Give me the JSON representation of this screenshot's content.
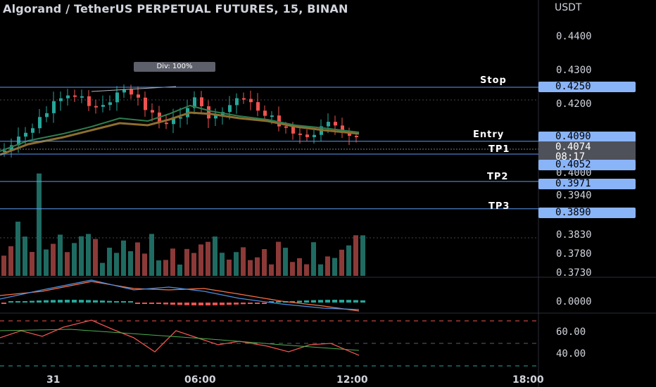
{
  "title": "Algorand / TetherUS PERPETUAL FUTURES, 15, BINAN",
  "currency": "USDT",
  "div_badge": "Div: 100%",
  "levels": [
    {
      "label": "Stop",
      "price": "0.4250",
      "value": 0.425
    },
    {
      "label": "Entry",
      "price": "0.4090",
      "value": 0.409
    },
    {
      "label": "TP1",
      "price": "0.4052",
      "value": 0.4052
    },
    {
      "label": "TP2",
      "price": "0.3971",
      "value": 0.3971
    },
    {
      "label": "TP3",
      "price": "0.3890",
      "value": 0.389
    }
  ],
  "current_price": {
    "price": "0.4074",
    "countdown": "08:17"
  },
  "price_axis": [
    "0.4400",
    "0.4300",
    "0.4200",
    "0.4000",
    "0.3940",
    "0.3830",
    "0.3780",
    "0.3730"
  ],
  "macd_axis": [
    "0.0000"
  ],
  "rsi_axis": [
    "60.00",
    "40.00"
  ],
  "time_axis": [
    "31",
    "06:00",
    "12:00",
    "18:00"
  ],
  "colors": {
    "up": "#26a69a",
    "down": "#ef5350",
    "level": "#5b9cf6",
    "tag": "#8ab4f8"
  }
}
